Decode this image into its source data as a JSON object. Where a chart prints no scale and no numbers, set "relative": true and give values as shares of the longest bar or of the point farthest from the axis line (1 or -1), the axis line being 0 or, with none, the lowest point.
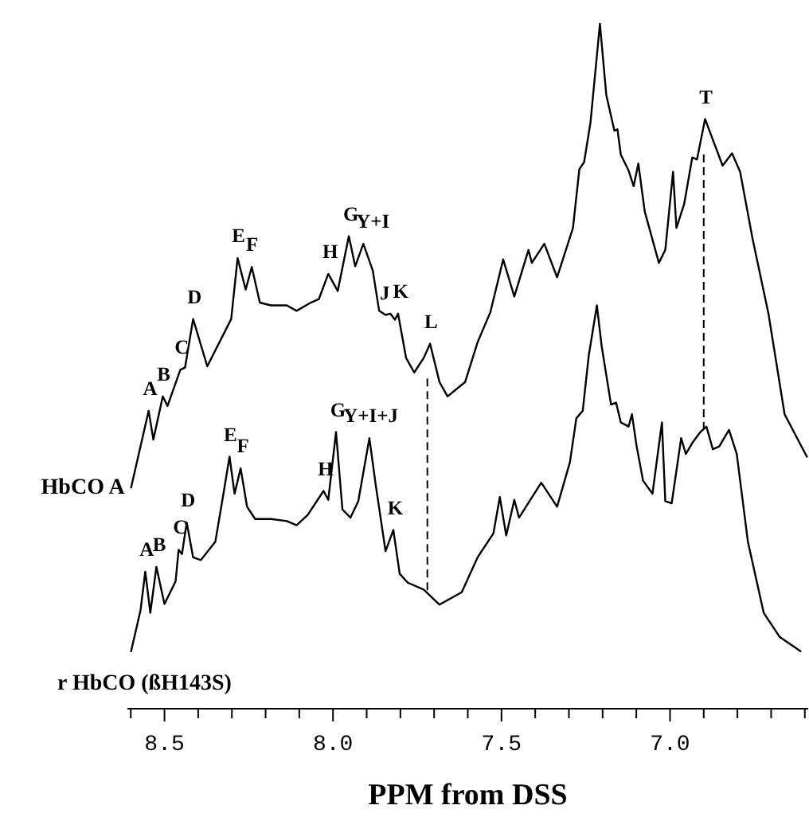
{
  "chart_data": {
    "type": "line",
    "relative": true,
    "xlabel": "PPM from DSS",
    "tick_labels": "x",
    "xlim": [
      8.61,
      6.59
    ],
    "xticks": [
      {
        "value": 8.6,
        "label": null
      },
      8.5,
      {
        "value": 8.4,
        "label": null
      },
      {
        "value": 8.3,
        "label": null
      },
      {
        "value": 8.2,
        "label": null
      },
      {
        "value": 8.1,
        "label": null
      },
      {
        "value": 8,
        "label": "8.0"
      },
      {
        "value": 7.9,
        "label": null
      },
      {
        "value": 7.8,
        "label": null
      },
      {
        "value": 7.7,
        "label": null
      },
      {
        "value": 7.6,
        "label": null
      },
      7.5,
      {
        "value": 7.4,
        "label": null
      },
      {
        "value": 7.3,
        "label": null
      },
      {
        "value": 7.2,
        "label": null
      },
      {
        "value": 7.1,
        "label": null
      },
      {
        "value": 7,
        "label": "7.0"
      },
      {
        "value": 6.9,
        "label": null
      },
      {
        "value": 6.8,
        "label": null
      },
      {
        "value": 6.7,
        "label": null
      },
      {
        "value": 6.6,
        "label": null
      }
    ],
    "series": [
      {
        "name": "HbCO A",
        "color": "#000000",
        "x": [
          8.599,
          8.547,
          8.533,
          8.505,
          8.491,
          8.453,
          8.439,
          8.415,
          8.373,
          8.302,
          8.283,
          8.259,
          8.241,
          8.217,
          8.184,
          8.137,
          8.108,
          8.066,
          8.042,
          8.014,
          7.986,
          7.953,
          7.934,
          7.91,
          7.882,
          7.863,
          7.844,
          7.83,
          7.816,
          7.807,
          7.783,
          7.759,
          7.731,
          7.712,
          7.684,
          7.66,
          7.608,
          7.571,
          7.533,
          7.495,
          7.462,
          7.42,
          7.41,
          7.373,
          7.335,
          7.288,
          7.269,
          7.255,
          7.236,
          7.208,
          7.189,
          7.165,
          7.156,
          7.146,
          7.123,
          7.108,
          7.094,
          7.075,
          7.033,
          7.014,
          6.991,
          6.981,
          6.958,
          6.934,
          6.92,
          6.896,
          6.873,
          6.844,
          6.816,
          6.792,
          6.755,
          6.708,
          6.66,
          6.594
        ],
        "values": [
          0.323,
          0.435,
          0.393,
          0.456,
          0.442,
          0.495,
          0.498,
          0.569,
          0.5,
          0.569,
          0.658,
          0.612,
          0.645,
          0.593,
          0.589,
          0.589,
          0.581,
          0.593,
          0.598,
          0.635,
          0.61,
          0.69,
          0.646,
          0.679,
          0.64,
          0.581,
          0.575,
          0.577,
          0.568,
          0.577,
          0.512,
          0.491,
          0.512,
          0.533,
          0.477,
          0.456,
          0.477,
          0.535,
          0.579,
          0.656,
          0.602,
          0.67,
          0.651,
          0.679,
          0.63,
          0.702,
          0.788,
          0.798,
          0.856,
          1.0,
          0.896,
          0.844,
          0.846,
          0.809,
          0.786,
          0.763,
          0.796,
          0.726,
          0.651,
          0.67,
          0.784,
          0.702,
          0.737,
          0.805,
          0.802,
          0.861,
          0.831,
          0.793,
          0.811,
          0.784,
          0.686,
          0.577,
          0.43,
          0.368
        ]
      },
      {
        "name": "r HbCO (ßH143S)",
        "color": "#000000",
        "x": [
          8.599,
          8.571,
          8.557,
          8.542,
          8.524,
          8.5,
          8.467,
          8.458,
          8.448,
          8.434,
          8.415,
          8.392,
          8.349,
          8.325,
          8.307,
          8.292,
          8.274,
          8.255,
          8.231,
          8.184,
          8.137,
          8.108,
          8.075,
          8.028,
          8.014,
          7.991,
          7.972,
          7.948,
          7.925,
          7.892,
          7.873,
          7.844,
          7.821,
          7.802,
          7.778,
          7.731,
          7.684,
          7.618,
          7.571,
          7.524,
          7.505,
          7.486,
          7.462,
          7.448,
          7.382,
          7.335,
          7.297,
          7.278,
          7.259,
          7.241,
          7.217,
          7.203,
          7.175,
          7.16,
          7.146,
          7.123,
          7.113,
          7.099,
          7.08,
          7.052,
          7.024,
          7.014,
          6.995,
          6.967,
          6.953,
          6.934,
          6.91,
          6.892,
          6.873,
          6.854,
          6.825,
          6.802,
          6.769,
          6.722,
          6.675,
          6.613
        ],
        "values": [
          0.084,
          0.144,
          0.2,
          0.14,
          0.207,
          0.153,
          0.186,
          0.232,
          0.226,
          0.272,
          0.221,
          0.217,
          0.244,
          0.314,
          0.368,
          0.314,
          0.351,
          0.295,
          0.277,
          0.277,
          0.274,
          0.268,
          0.283,
          0.318,
          0.305,
          0.404,
          0.291,
          0.279,
          0.303,
          0.395,
          0.326,
          0.23,
          0.261,
          0.197,
          0.184,
          0.174,
          0.152,
          0.17,
          0.221,
          0.256,
          0.309,
          0.253,
          0.305,
          0.279,
          0.33,
          0.295,
          0.36,
          0.424,
          0.435,
          0.516,
          0.589,
          0.53,
          0.444,
          0.447,
          0.418,
          0.412,
          0.43,
          0.383,
          0.333,
          0.314,
          0.418,
          0.303,
          0.3,
          0.395,
          0.372,
          0.388,
          0.404,
          0.412,
          0.379,
          0.383,
          0.407,
          0.372,
          0.244,
          0.14,
          0.105,
          0.084
        ]
      }
    ],
    "ref_lines": [
      {
        "axis": "x",
        "value": 7.72,
        "line_style": "dashed"
      },
      {
        "axis": "x",
        "value": 6.9,
        "line_style": "dashed"
      }
    ],
    "annotations": [
      {
        "text": "A",
        "x": 8.547,
        "y": 0.435
      },
      {
        "text": "B",
        "x": 8.505,
        "y": 0.456
      },
      {
        "text": "C",
        "x": 8.453,
        "y": 0.495
      },
      {
        "text": "D",
        "x": 8.415,
        "y": 0.569
      },
      {
        "text": "E",
        "x": 8.283,
        "y": 0.658
      },
      {
        "text": "F",
        "x": 8.241,
        "y": 0.645
      },
      {
        "text": "H",
        "x": 8.014,
        "y": 0.635
      },
      {
        "text": "G",
        "x": 7.953,
        "y": 0.69
      },
      {
        "text": "Y+I",
        "x": 7.91,
        "y": 0.679
      },
      {
        "text": "J",
        "x": 7.844,
        "y": 0.575
      },
      {
        "text": "K",
        "x": 7.807,
        "y": 0.577
      },
      {
        "text": "L",
        "x": 7.712,
        "y": 0.533
      },
      {
        "text": "T",
        "x": 6.896,
        "y": 0.861
      },
      {
        "text": "A",
        "x": 8.557,
        "y": 0.2
      },
      {
        "text": "B",
        "x": 8.524,
        "y": 0.207
      },
      {
        "text": "C",
        "x": 8.458,
        "y": 0.232
      },
      {
        "text": "D",
        "x": 8.434,
        "y": 0.272
      },
      {
        "text": "E",
        "x": 8.307,
        "y": 0.368
      },
      {
        "text": "F",
        "x": 8.274,
        "y": 0.351
      },
      {
        "text": "H",
        "x": 8.028,
        "y": 0.318
      },
      {
        "text": "G",
        "x": 7.991,
        "y": 0.404
      },
      {
        "text": "Y+I+J",
        "x": 7.892,
        "y": 0.395
      },
      {
        "text": "K",
        "x": 7.821,
        "y": 0.261
      }
    ]
  }
}
